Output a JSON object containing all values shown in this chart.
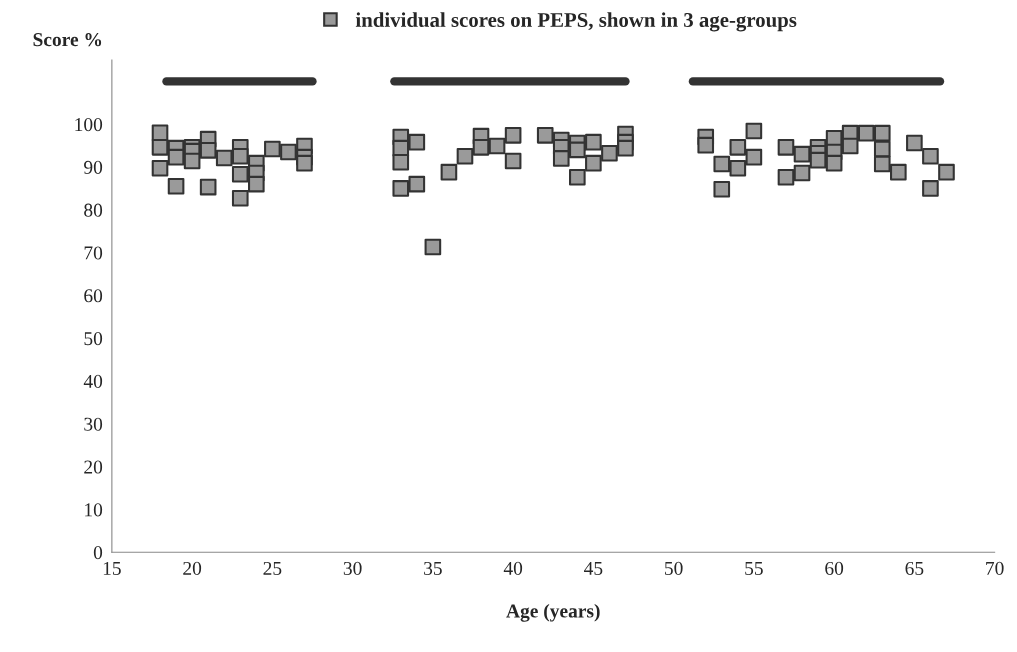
{
  "chart_data": {
    "type": "scatter",
    "xlabel": "Age (years)",
    "ylabel": "Score %",
    "xlim": [
      15,
      70
    ],
    "ylim": [
      0,
      115
    ],
    "xticks": [
      15,
      20,
      25,
      30,
      35,
      40,
      45,
      50,
      55,
      60,
      65,
      70
    ],
    "yticks": [
      0,
      10,
      20,
      30,
      40,
      50,
      60,
      70,
      80,
      90,
      100
    ],
    "grid": false,
    "legend": "top",
    "marker": "square",
    "series": [
      {
        "name": "individual scores on PEPS, shown in 3 age-groups",
        "color": "#9a9a9a",
        "x": [
          18,
          18,
          18,
          19,
          19,
          19,
          20,
          20,
          20,
          21,
          21,
          21,
          22,
          23,
          23,
          23,
          23,
          24,
          24,
          24,
          25,
          26,
          27,
          27,
          27,
          33,
          33,
          33,
          33,
          34,
          34,
          35,
          36,
          37,
          38,
          38,
          39,
          40,
          40,
          42,
          43,
          43,
          43,
          44,
          44,
          44,
          45,
          45,
          46,
          47,
          47,
          47,
          52,
          52,
          53,
          53,
          54,
          54,
          55,
          55,
          57,
          57,
          58,
          58,
          59,
          59,
          59,
          60,
          60,
          60,
          61,
          61,
          62,
          63,
          63,
          63,
          64,
          65,
          66,
          66,
          67
        ],
        "values": [
          98,
          94.6,
          89.7,
          94.4,
          92.3,
          85.5,
          94.6,
          93.7,
          91.4,
          96.5,
          93.9,
          85.3,
          92.1,
          94.6,
          92.5,
          88.3,
          82.7,
          90.9,
          88.6,
          86,
          94.2,
          93.5,
          94.9,
          92.3,
          90.9,
          97,
          94.4,
          91.1,
          85,
          95.8,
          86,
          71.3,
          88.8,
          92.5,
          97.2,
          94.6,
          94.9,
          97.4,
          91.4,
          97.4,
          96.3,
          94.6,
          92,
          95.6,
          94,
          87.6,
          95.8,
          90.9,
          93.2,
          97.7,
          95.8,
          94.4,
          97,
          95.1,
          90.7,
          84.8,
          94.6,
          89.7,
          98.4,
          92.3,
          94.6,
          87.6,
          93,
          88.6,
          94.6,
          93.2,
          91.6,
          96.7,
          93.5,
          90.9,
          97.9,
          94.9,
          97.9,
          97.9,
          94.2,
          90.7,
          88.8,
          95.6,
          92.5,
          85,
          88.8
        ]
      },
      {
        "type": "line",
        "marker": "none",
        "color": "#333333",
        "x": [
          18.4,
          27.5
        ],
        "values": [
          110,
          110
        ]
      },
      {
        "type": "line",
        "marker": "none",
        "color": "#333333",
        "x": [
          32.6,
          47
        ],
        "values": [
          110,
          110
        ]
      },
      {
        "type": "line",
        "marker": "none",
        "color": "#333333",
        "x": [
          51.2,
          66.6
        ],
        "values": [
          110,
          110
        ]
      }
    ]
  }
}
